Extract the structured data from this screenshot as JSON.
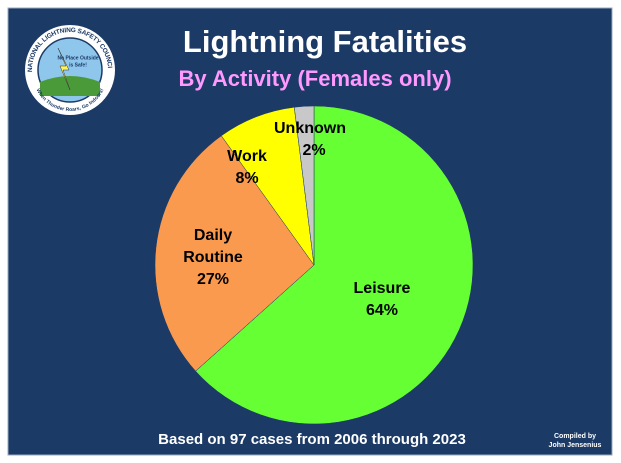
{
  "chart_data": {
    "type": "pie",
    "title": "Lightning Fatalities",
    "subtitle": "By Activity (Females only)",
    "categories": [
      "Leisure",
      "Daily Routine",
      "Work",
      "Unknown"
    ],
    "values": [
      64,
      27,
      8,
      2
    ],
    "value_labels": [
      "64%",
      "27%",
      "8%",
      "2%"
    ],
    "colors": [
      "#66ff33",
      "#fa9a4f",
      "#ffff00",
      "#c8c8c8"
    ],
    "footnote": "Based on 97 cases from 2006 through 2023",
    "credit": [
      "Compiled by",
      "John Jensenius"
    ],
    "logo": {
      "ring_top": "NATIONAL LIGHTNING SAFETY COUNCIL",
      "center": [
        "No Place Outside",
        "is Safe!"
      ],
      "ring_bottom": "When Thunder Roars, Go Indoors!"
    }
  }
}
